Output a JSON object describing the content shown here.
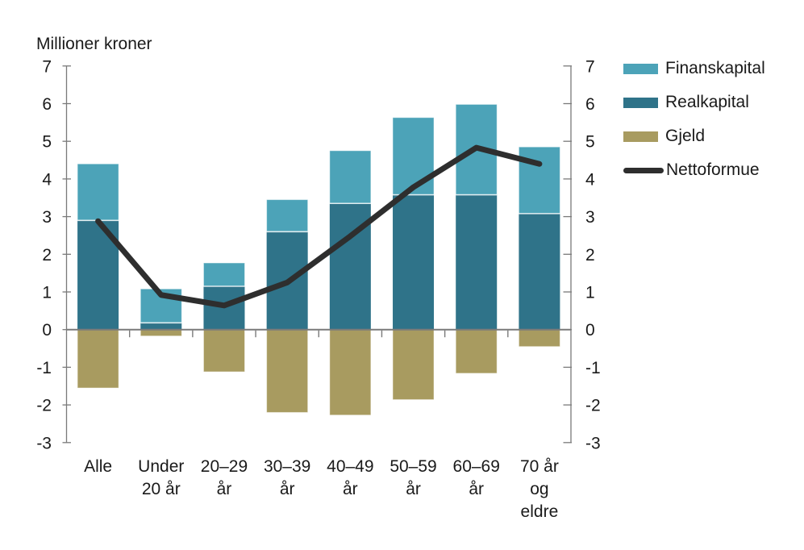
{
  "title": "Millioner kroner",
  "colors": {
    "finanskapital": "#4CA3B8",
    "realkapital": "#2F7389",
    "gjeld": "#A89B60",
    "nettoformue": "#2E2E2E",
    "axis": "#7A7A7A",
    "text": "#1A1A1A",
    "segment_separator": "rgba(255,255,255,0.75)"
  },
  "legend": {
    "items": [
      {
        "label": "Finanskapital",
        "swatch": "box",
        "color_key": "finanskapital"
      },
      {
        "label": "Realkapital",
        "swatch": "box",
        "color_key": "realkapital"
      },
      {
        "label": "Gjeld",
        "swatch": "box",
        "color_key": "gjeld"
      },
      {
        "label": "Nettoformue",
        "swatch": "line",
        "color_key": "nettoformue"
      }
    ]
  },
  "chart_data": {
    "type": "bar",
    "subtype": "stacked-bar-with-line",
    "title": "Millioner kroner",
    "categories": [
      "Alle",
      "Under 20 år",
      "20–29 år",
      "30–39 år",
      "40–49 år",
      "50–59 år",
      "60–69 år",
      "70 år og eldre"
    ],
    "category_label_lines": [
      [
        "Alle"
      ],
      [
        "Under",
        "20 år"
      ],
      [
        "20–29",
        "år"
      ],
      [
        "30–39",
        "år"
      ],
      [
        "40–49",
        "år"
      ],
      [
        "50–59",
        "år"
      ],
      [
        "60–69",
        "år"
      ],
      [
        "70 år",
        "og",
        "eldre"
      ]
    ],
    "series": [
      {
        "name": "Finanskapital",
        "type": "bar",
        "stack": "positive",
        "values": [
          1.5,
          0.9,
          0.62,
          0.85,
          1.4,
          2.05,
          2.4,
          1.77
        ]
      },
      {
        "name": "Realkapital",
        "type": "bar",
        "stack": "positive",
        "values": [
          2.9,
          0.18,
          1.15,
          2.6,
          3.35,
          3.58,
          3.58,
          3.08
        ]
      },
      {
        "name": "Gjeld",
        "type": "bar",
        "stack": "negative",
        "values": [
          -1.55,
          -0.17,
          -1.12,
          -2.2,
          -2.27,
          -1.86,
          -1.16,
          -0.45
        ]
      },
      {
        "name": "Nettoformue",
        "type": "line",
        "values": [
          2.88,
          0.92,
          0.64,
          1.25,
          2.48,
          3.78,
          4.83,
          4.4
        ]
      }
    ],
    "ylabel": "Millioner kroner",
    "xlabel": "",
    "ylim": [
      -3,
      7
    ],
    "y_ticks": [
      7,
      6,
      5,
      4,
      3,
      2,
      1,
      0,
      -1,
      -2,
      -3
    ],
    "dual_axis": true,
    "grid": false,
    "legend_position": "right-top"
  }
}
